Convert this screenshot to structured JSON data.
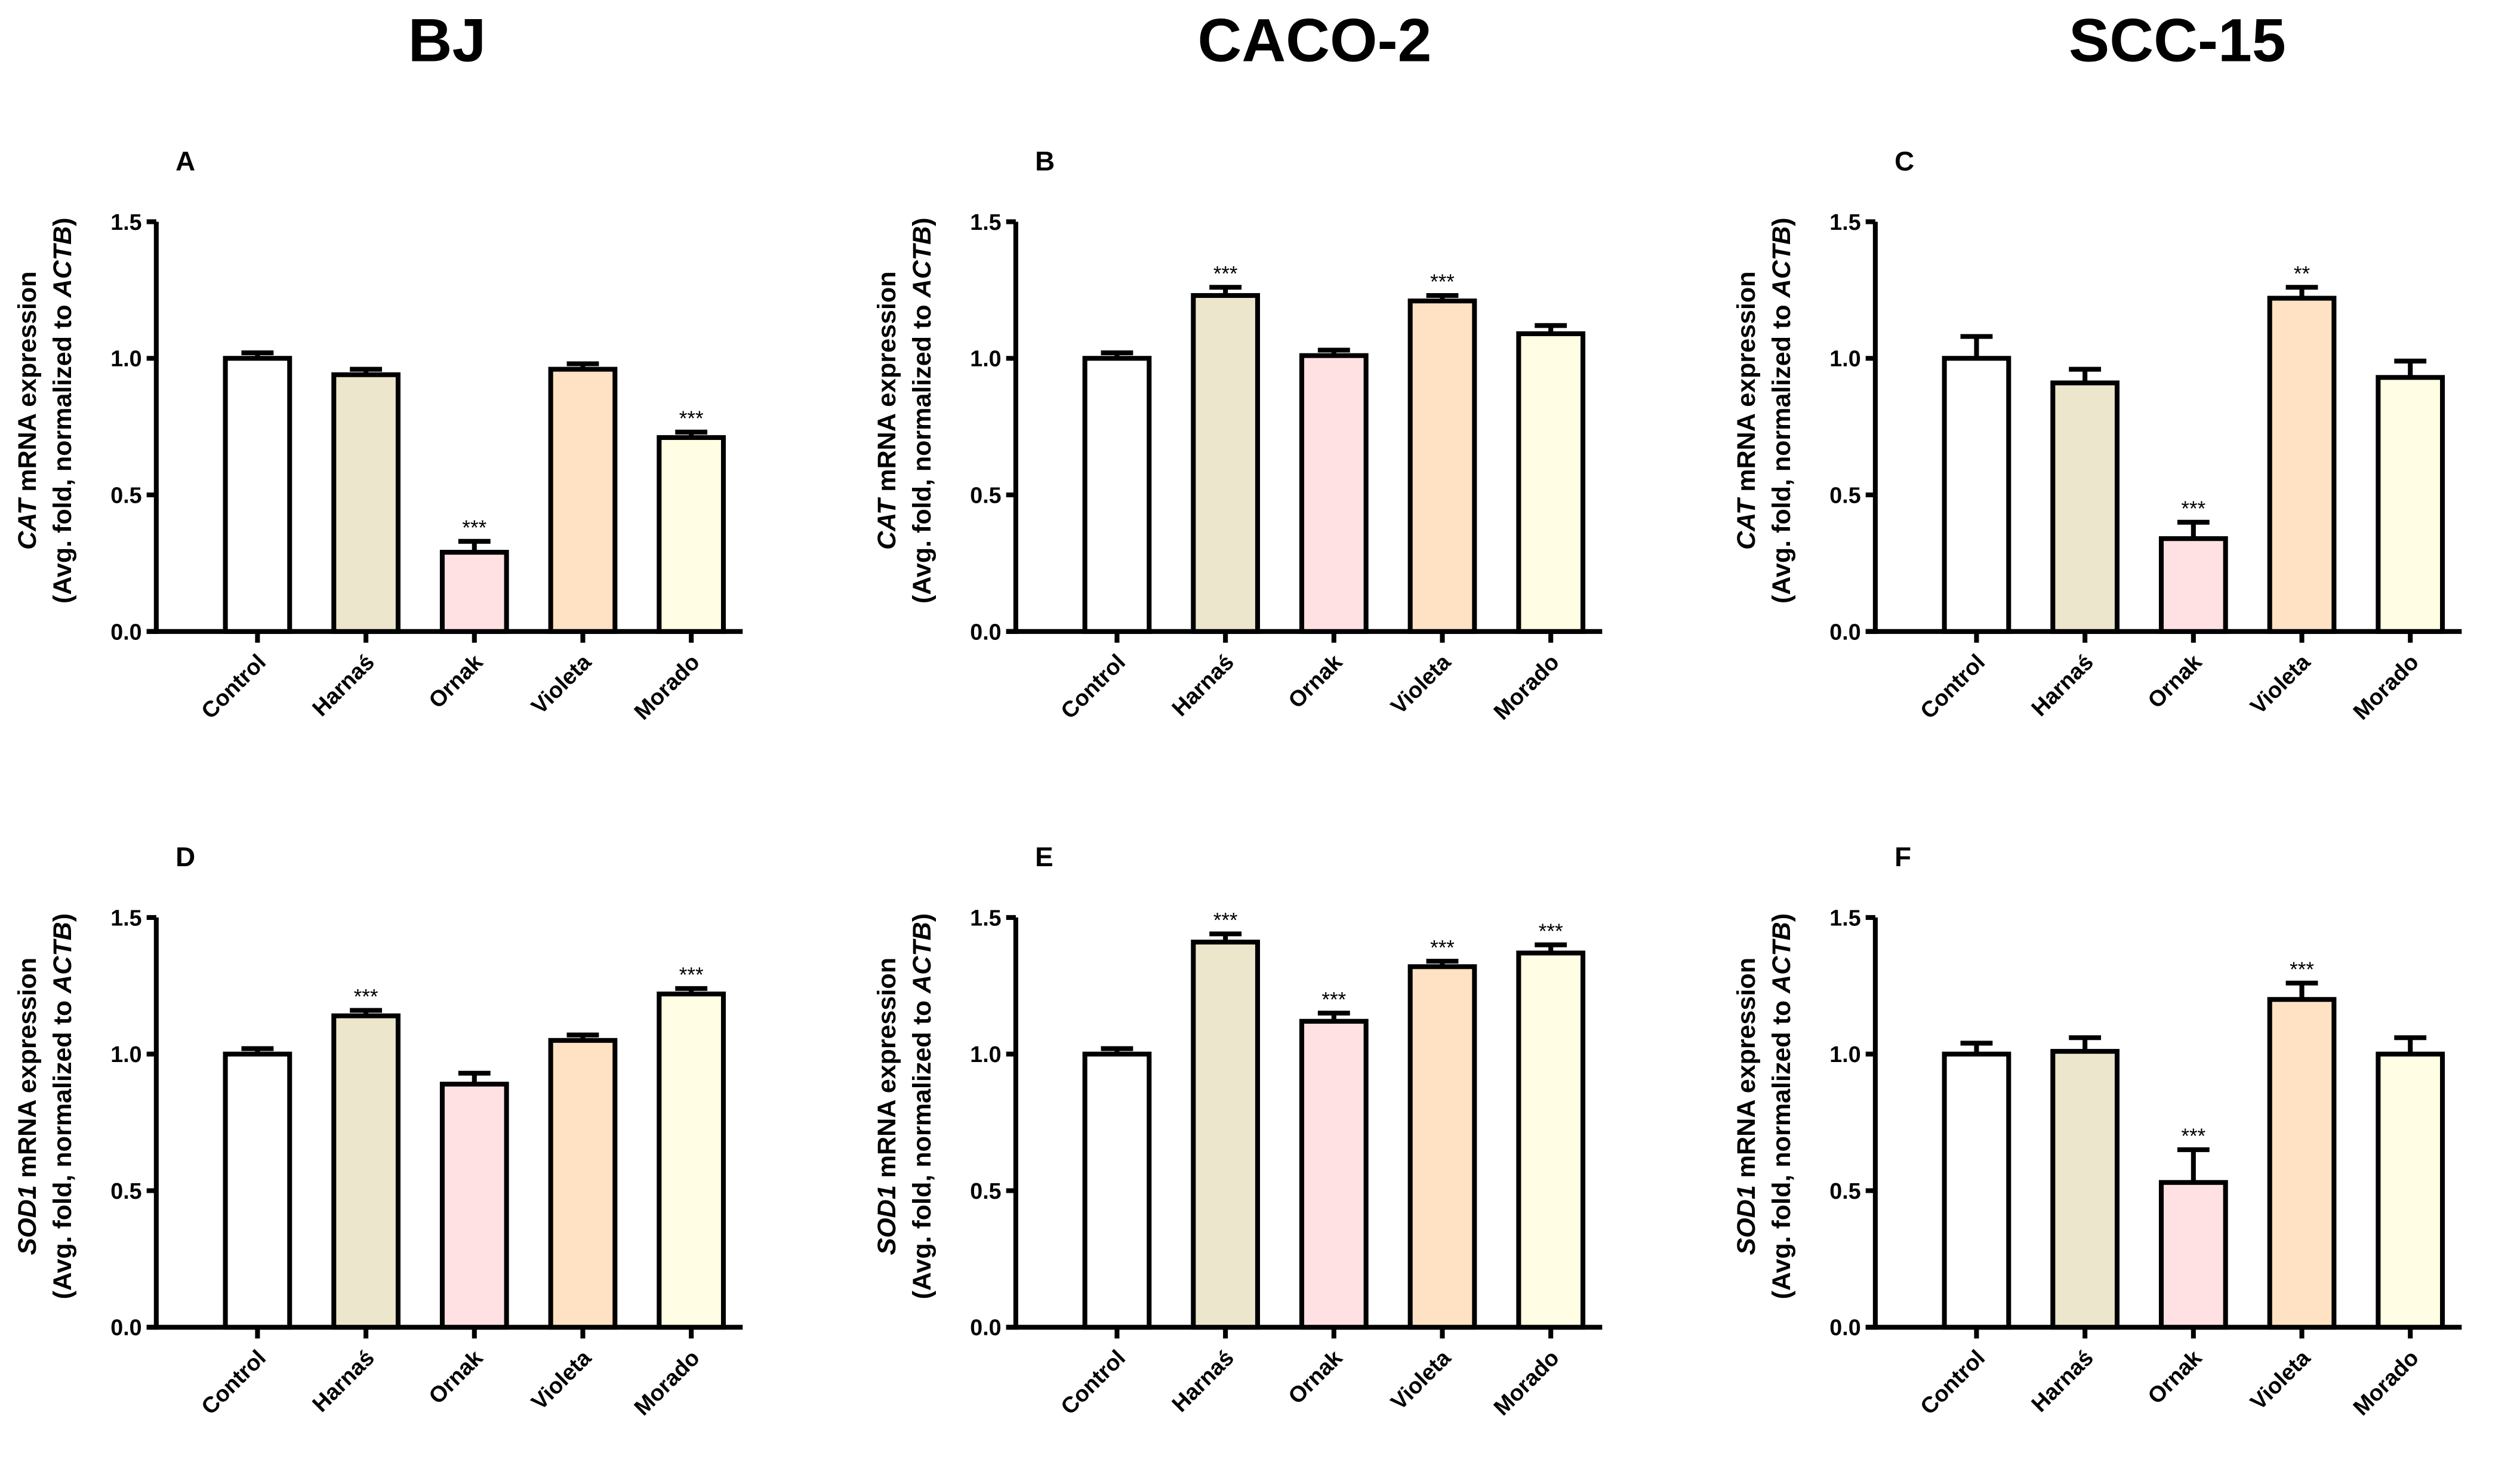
{
  "column_titles": [
    "BJ",
    "CACO-2",
    "SCC-15"
  ],
  "colors": {
    "Control": "#ffffff",
    "Harnaś": "#ebe6cc",
    "Ornak": "#ffe1e3",
    "Violeta": "#ffe1c3",
    "Morado": "#fffde3"
  },
  "chart_data": [
    {
      "type": "bar",
      "panel": "A",
      "cell_line": "BJ",
      "gene": "CAT",
      "ylabel_line2_prefix": "(Avg. fold, normalized to ",
      "ylabel_line2_gene": "ACTB",
      "ylabel_line2_suffix": ")",
      "ylabel_suffix": " mRNA expression",
      "categories": [
        "Control",
        "Harnaś",
        "Ornak",
        "Violeta",
        "Morado"
      ],
      "values": [
        1.0,
        0.94,
        0.29,
        0.96,
        0.71
      ],
      "errors": [
        0.02,
        0.02,
        0.04,
        0.02,
        0.02
      ],
      "significance": [
        "",
        "",
        "***",
        "",
        "***"
      ],
      "ylim": [
        0,
        1.5
      ],
      "yticks": [
        "0.0",
        "0.5",
        "1.0",
        "1.5"
      ]
    },
    {
      "type": "bar",
      "panel": "B",
      "cell_line": "CACO-2",
      "gene": "CAT",
      "ylabel_line2_prefix": "(Avg. fold, normalized to ",
      "ylabel_line2_gene": "ACTB",
      "ylabel_line2_suffix": ")",
      "ylabel_suffix": " mRNA expression",
      "categories": [
        "Control",
        "Harnaś",
        "Ornak",
        "Violeta",
        "Morado"
      ],
      "values": [
        1.0,
        1.23,
        1.01,
        1.21,
        1.09
      ],
      "errors": [
        0.02,
        0.03,
        0.02,
        0.02,
        0.03
      ],
      "significance": [
        "",
        "***",
        "",
        "***",
        ""
      ],
      "ylim": [
        0,
        1.5
      ],
      "yticks": [
        "0.0",
        "0.5",
        "1.0",
        "1.5"
      ]
    },
    {
      "type": "bar",
      "panel": "C",
      "cell_line": "SCC-15",
      "gene": "CAT",
      "ylabel_line2_prefix": "(Avg. fold, normalized to ",
      "ylabel_line2_gene": "ACTB",
      "ylabel_line2_suffix": ")",
      "ylabel_suffix": " mRNA expression",
      "categories": [
        "Control",
        "Harnaś",
        "Ornak",
        "Violeta",
        "Morado"
      ],
      "values": [
        1.0,
        0.91,
        0.34,
        1.22,
        0.93
      ],
      "errors": [
        0.08,
        0.05,
        0.06,
        0.04,
        0.06
      ],
      "significance": [
        "",
        "",
        "***",
        "**",
        ""
      ],
      "ylim": [
        0,
        1.5
      ],
      "yticks": [
        "0.0",
        "0.5",
        "1.0",
        "1.5"
      ]
    },
    {
      "type": "bar",
      "panel": "D",
      "cell_line": "BJ",
      "gene": "SOD1",
      "ylabel_line2_prefix": "(Avg. fold, normalized to ",
      "ylabel_line2_gene": "ACTB",
      "ylabel_line2_suffix": ")",
      "ylabel_suffix": " mRNA expression",
      "categories": [
        "Control",
        "Harnaś",
        "Ornak",
        "Violeta",
        "Morado"
      ],
      "values": [
        1.0,
        1.14,
        0.89,
        1.05,
        1.22
      ],
      "errors": [
        0.02,
        0.02,
        0.04,
        0.02,
        0.02
      ],
      "significance": [
        "",
        "***",
        "",
        "",
        "***"
      ],
      "ylim": [
        0,
        1.5
      ],
      "yticks": [
        "0.0",
        "0.5",
        "1.0",
        "1.5"
      ]
    },
    {
      "type": "bar",
      "panel": "E",
      "cell_line": "CACO-2",
      "gene": "SOD1",
      "ylabel_line2_prefix": "(Avg. fold, normalized to ",
      "ylabel_line2_gene": "ACTB",
      "ylabel_line2_suffix": ")",
      "ylabel_suffix": " mRNA expression",
      "categories": [
        "Control",
        "Harnaś",
        "Ornak",
        "Violeta",
        "Morado"
      ],
      "values": [
        1.0,
        1.41,
        1.12,
        1.32,
        1.37
      ],
      "errors": [
        0.02,
        0.03,
        0.03,
        0.02,
        0.03
      ],
      "significance": [
        "",
        "***",
        "***",
        "***",
        "***"
      ],
      "ylim": [
        0,
        1.5
      ],
      "yticks": [
        "0.0",
        "0.5",
        "1.0",
        "1.5"
      ]
    },
    {
      "type": "bar",
      "panel": "F",
      "cell_line": "SCC-15",
      "gene": "SOD1",
      "ylabel_line2_prefix": "(Avg. fold, normalized to ",
      "ylabel_line2_gene": "ACTB",
      "ylabel_line2_suffix": ")",
      "ylabel_suffix": " mRNA expression",
      "categories": [
        "Control",
        "Harnaś",
        "Ornak",
        "Violeta",
        "Morado"
      ],
      "values": [
        1.0,
        1.01,
        0.53,
        1.2,
        1.0
      ],
      "errors": [
        0.04,
        0.05,
        0.12,
        0.06,
        0.06
      ],
      "significance": [
        "",
        "",
        "***",
        "***",
        ""
      ],
      "ylim": [
        0,
        1.5
      ],
      "yticks": [
        "0.0",
        "0.5",
        "1.0",
        "1.5"
      ]
    }
  ]
}
